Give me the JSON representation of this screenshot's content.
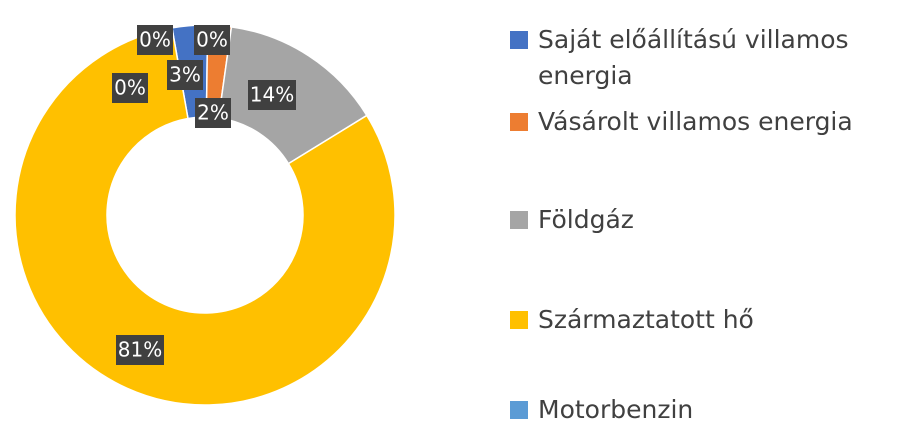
{
  "chart_data": {
    "type": "donut",
    "categories": [
      "Saját előállítású villamos energia",
      "Vásárolt villamos energia",
      "Földgáz",
      "Származtatott hő",
      "Motorbenzin",
      null,
      null
    ],
    "values": [
      3,
      2,
      14,
      81,
      0,
      0,
      0
    ],
    "value_labels": [
      "3%",
      "2%",
      "14%",
      "81%",
      "0%",
      "0%",
      "0%"
    ],
    "colors": [
      "#4472c4",
      "#ed7d31",
      "#a5a5a5",
      "#ffc000",
      "#5b9bd5",
      "#70ad47",
      "#264478"
    ],
    "start_angle": -10,
    "legend": "right"
  }
}
